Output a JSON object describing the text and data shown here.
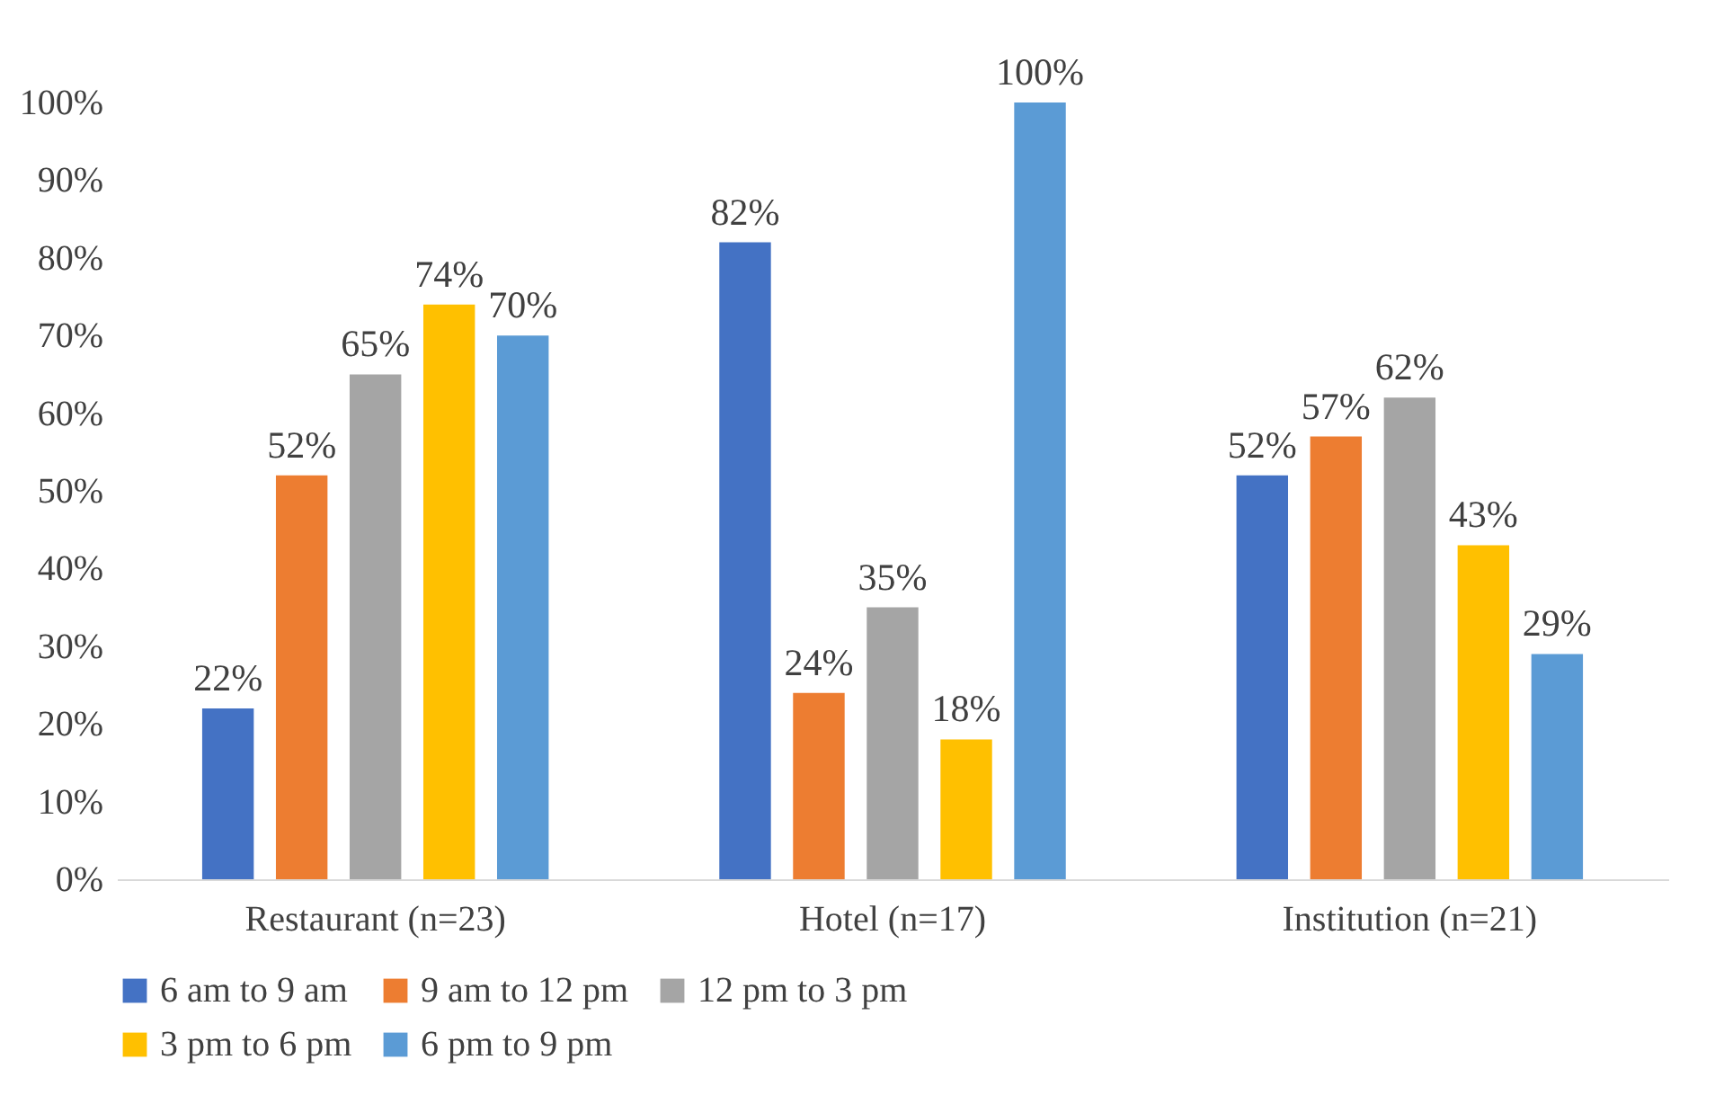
{
  "chart_data": {
    "type": "bar",
    "categories": [
      "Restaurant (n=23)",
      "Hotel (n=17)",
      "Institution (n=21)"
    ],
    "series": [
      {
        "name": "6 am to 9 am",
        "color": "#4472c4",
        "values": [
          22,
          82,
          52
        ],
        "value_labels": [
          "22%",
          "82%",
          "52%"
        ]
      },
      {
        "name": "9 am to 12 pm",
        "color": "#ed7d31",
        "values": [
          52,
          24,
          57
        ],
        "value_labels": [
          "52%",
          "24%",
          "57%"
        ]
      },
      {
        "name": "12 pm to 3 pm",
        "color": "#a5a5a5",
        "values": [
          65,
          35,
          62
        ],
        "value_labels": [
          "65%",
          "35%",
          "62%"
        ]
      },
      {
        "name": "3 pm to 6 pm",
        "color": "#ffc000",
        "values": [
          74,
          18,
          43
        ],
        "value_labels": [
          "74%",
          "18%",
          "43%"
        ]
      },
      {
        "name": "6 pm to 9 pm",
        "color": "#5b9bd5",
        "values": [
          70,
          100,
          29
        ],
        "value_labels": [
          "70%",
          "100%",
          "29%"
        ]
      }
    ],
    "ylim": [
      0,
      100
    ],
    "yticks": [
      {
        "value": 0,
        "label": "0%"
      },
      {
        "value": 10,
        "label": "10%"
      },
      {
        "value": 20,
        "label": "20%"
      },
      {
        "value": 30,
        "label": "30%"
      },
      {
        "value": 40,
        "label": "40%"
      },
      {
        "value": 50,
        "label": "50%"
      },
      {
        "value": 60,
        "label": "60%"
      },
      {
        "value": 70,
        "label": "70%"
      },
      {
        "value": 80,
        "label": "80%"
      },
      {
        "value": 90,
        "label": "90%"
      },
      {
        "value": 100,
        "label": "100%"
      }
    ],
    "grid": false,
    "legend": "bottom"
  }
}
